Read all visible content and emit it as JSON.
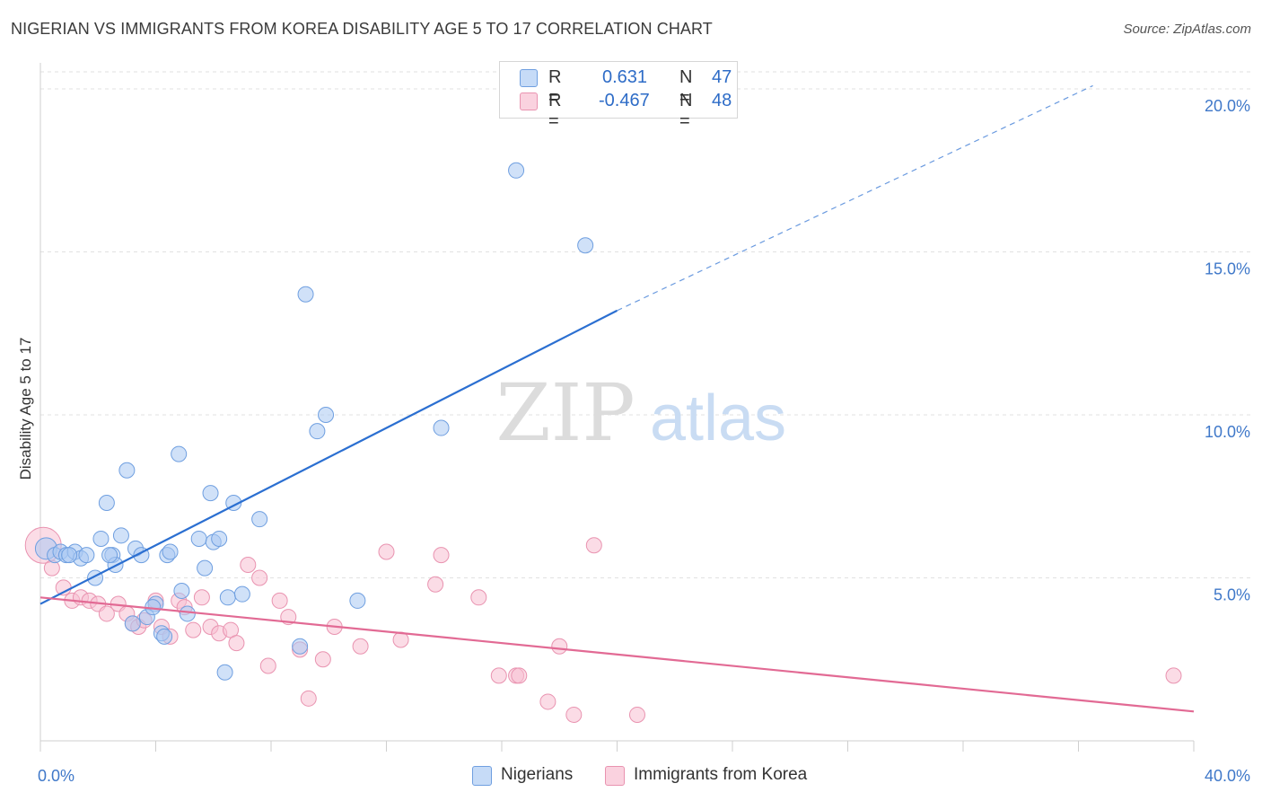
{
  "header": {
    "title": "NIGERIAN VS IMMIGRANTS FROM KOREA DISABILITY AGE 5 TO 17 CORRELATION CHART",
    "source": "Source: ZipAtlas.com"
  },
  "watermark": {
    "zip": "ZIP",
    "atlas": "atlas"
  },
  "legend": {
    "rows": [
      {
        "r_label": "R =",
        "r_value": "0.631",
        "n_label": "N =",
        "n_value": "47",
        "color": "#a9c8f2",
        "border": "#6f9fe0"
      },
      {
        "r_label": "R =",
        "r_value": "-0.467",
        "n_label": "N =",
        "n_value": "48",
        "color": "#f7bfd1",
        "border": "#e993b0"
      }
    ]
  },
  "bottom_legend": [
    {
      "label": "Nigerians",
      "color": "#a9c8f2",
      "border": "#6f9fe0"
    },
    {
      "label": "Immigrants from Korea",
      "color": "#f7bfd1",
      "border": "#e993b0"
    }
  ],
  "chart_data": {
    "type": "scatter",
    "title": "NIGERIAN VS IMMIGRANTS FROM KOREA DISABILITY AGE 5 TO 17 CORRELATION CHART",
    "xlabel": "",
    "ylabel": "Disability Age 5 to 17",
    "xlim": [
      0,
      40
    ],
    "ylim": [
      0,
      20.8
    ],
    "x_tick_labels": [
      "0.0%",
      "40.0%"
    ],
    "y_ticks": [
      5,
      10,
      15,
      20
    ],
    "y_tick_labels": [
      "5.0%",
      "10.0%",
      "15.0%",
      "20.0%"
    ],
    "grid": true,
    "legend_position": "top-center",
    "series": [
      {
        "name": "Nigerians",
        "color": "#6f9fe0",
        "fill": "#a9c8f2",
        "line_color": "#2b6fd1",
        "trend": {
          "x": [
            0,
            20
          ],
          "y": [
            4.2,
            13.2
          ],
          "dashed_to": [
            36.5,
            20.1
          ]
        },
        "points": [
          [
            0.2,
            5.9
          ],
          [
            0.5,
            5.7
          ],
          [
            0.7,
            5.8
          ],
          [
            0.9,
            5.7
          ],
          [
            1.2,
            5.8
          ],
          [
            1.4,
            5.6
          ],
          [
            1.6,
            5.7
          ],
          [
            1.9,
            5.0
          ],
          [
            2.1,
            6.2
          ],
          [
            2.3,
            7.3
          ],
          [
            2.5,
            5.7
          ],
          [
            2.6,
            5.4
          ],
          [
            2.8,
            6.3
          ],
          [
            3.0,
            8.3
          ],
          [
            3.3,
            5.9
          ],
          [
            3.5,
            5.7
          ],
          [
            3.7,
            3.8
          ],
          [
            4.0,
            4.2
          ],
          [
            4.2,
            3.3
          ],
          [
            4.3,
            3.2
          ],
          [
            4.4,
            5.7
          ],
          [
            4.5,
            5.8
          ],
          [
            4.8,
            8.8
          ],
          [
            4.9,
            4.6
          ],
          [
            5.1,
            3.9
          ],
          [
            5.5,
            6.2
          ],
          [
            5.7,
            5.3
          ],
          [
            5.9,
            7.6
          ],
          [
            6.0,
            6.1
          ],
          [
            6.2,
            6.2
          ],
          [
            6.4,
            2.1
          ],
          [
            6.5,
            4.4
          ],
          [
            6.7,
            7.3
          ],
          [
            7.0,
            4.5
          ],
          [
            7.6,
            6.8
          ],
          [
            9.0,
            2.9
          ],
          [
            9.2,
            13.7
          ],
          [
            9.6,
            9.5
          ],
          [
            9.9,
            10.0
          ],
          [
            11.0,
            4.3
          ],
          [
            13.9,
            9.6
          ],
          [
            16.5,
            17.5
          ],
          [
            18.9,
            15.2
          ],
          [
            3.2,
            3.6
          ],
          [
            3.9,
            4.1
          ],
          [
            1.0,
            5.7
          ],
          [
            2.4,
            5.7
          ]
        ]
      },
      {
        "name": "Immigrants from Korea",
        "color": "#e993b0",
        "fill": "#f7bfd1",
        "line_color": "#e26a94",
        "trend": {
          "x": [
            0,
            40
          ],
          "y": [
            4.4,
            0.9
          ]
        },
        "points": [
          [
            0.1,
            6.0
          ],
          [
            0.4,
            5.3
          ],
          [
            0.8,
            4.7
          ],
          [
            1.1,
            4.3
          ],
          [
            1.4,
            4.4
          ],
          [
            1.7,
            4.3
          ],
          [
            2.0,
            4.2
          ],
          [
            2.3,
            3.9
          ],
          [
            2.7,
            4.2
          ],
          [
            3.0,
            3.9
          ],
          [
            3.2,
            3.6
          ],
          [
            3.4,
            3.5
          ],
          [
            3.6,
            3.7
          ],
          [
            4.0,
            4.3
          ],
          [
            4.2,
            3.5
          ],
          [
            4.5,
            3.2
          ],
          [
            4.8,
            4.3
          ],
          [
            5.0,
            4.1
          ],
          [
            5.3,
            3.4
          ],
          [
            5.6,
            4.4
          ],
          [
            5.9,
            3.5
          ],
          [
            6.2,
            3.3
          ],
          [
            6.6,
            3.4
          ],
          [
            6.8,
            3.0
          ],
          [
            7.2,
            5.4
          ],
          [
            7.6,
            5.0
          ],
          [
            7.9,
            2.3
          ],
          [
            8.3,
            4.3
          ],
          [
            8.6,
            3.8
          ],
          [
            9.0,
            2.8
          ],
          [
            9.3,
            1.3
          ],
          [
            9.8,
            2.5
          ],
          [
            10.2,
            3.5
          ],
          [
            11.1,
            2.9
          ],
          [
            12.0,
            5.8
          ],
          [
            12.5,
            3.1
          ],
          [
            13.7,
            4.8
          ],
          [
            13.9,
            5.7
          ],
          [
            15.2,
            4.4
          ],
          [
            15.9,
            2.0
          ],
          [
            16.5,
            2.0
          ],
          [
            16.6,
            2.0
          ],
          [
            17.6,
            1.2
          ],
          [
            18.0,
            2.9
          ],
          [
            18.5,
            0.8
          ],
          [
            19.2,
            6.0
          ],
          [
            20.7,
            0.8
          ],
          [
            39.3,
            2.0
          ]
        ]
      }
    ]
  }
}
